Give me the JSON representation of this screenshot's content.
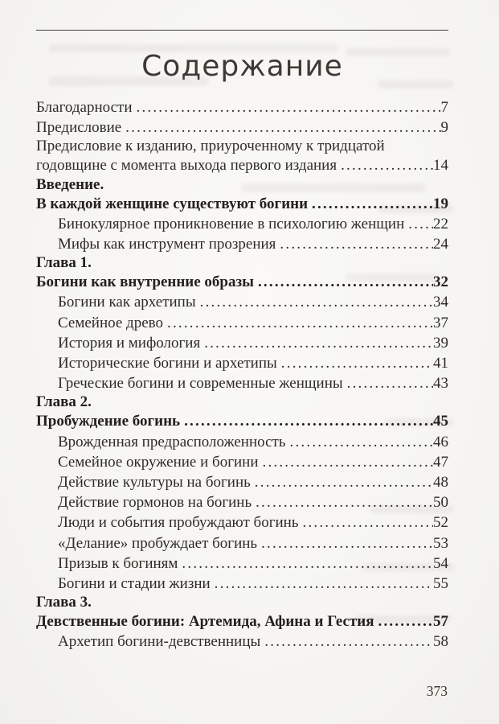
{
  "page": {
    "title": "Содержание",
    "folio": "373"
  },
  "colors": {
    "paper": "#f7f6f3",
    "ink": "#2e2b27",
    "ink_bold": "#23201d",
    "rule": "#45423e"
  },
  "toc": {
    "entries": [
      {
        "text": "Благодарности",
        "page": "7"
      },
      {
        "text": "Предисловие",
        "page": "9"
      },
      {
        "lines": [
          "Предисловие к изданию, приуроченному к тридцатой"
        ],
        "text": "годовщине с момента выхода первого издания",
        "page": "14"
      },
      {
        "lines": [
          "Введение."
        ],
        "text": "В каждой женщине существуют богини",
        "page": "19",
        "bold": true
      },
      {
        "text": "Бинокулярное проникновение в психологию женщин",
        "page": "22",
        "indent": true
      },
      {
        "text": "Мифы как инструмент прозрения",
        "page": "24",
        "indent": true
      },
      {
        "lines": [
          "Глава 1."
        ],
        "text": "Богини как внутренние образы",
        "page": "32",
        "bold": true
      },
      {
        "text": "Богини как архетипы",
        "page": "34",
        "indent": true
      },
      {
        "text": "Семейное древо",
        "page": "37",
        "indent": true
      },
      {
        "text": "История и мифология",
        "page": "39",
        "indent": true
      },
      {
        "text": "Исторические богини и архетипы",
        "page": "41",
        "indent": true
      },
      {
        "text": "Греческие богини и современные женщины",
        "page": "43",
        "indent": true
      },
      {
        "lines": [
          "Глава 2."
        ],
        "text": "Пробуждение богинь",
        "page": "45",
        "bold": true
      },
      {
        "text": "Врожденная предрасположенность",
        "page": "46",
        "indent": true
      },
      {
        "text": "Семейное окружение и богини",
        "page": "47",
        "indent": true
      },
      {
        "text": "Действие культуры на богинь",
        "page": "48",
        "indent": true
      },
      {
        "text": "Действие гормонов на богинь",
        "page": "50",
        "indent": true
      },
      {
        "text": "Люди и события пробуждают богинь",
        "page": "52",
        "indent": true
      },
      {
        "text": "«Делание» пробуждает богинь",
        "page": "53",
        "indent": true
      },
      {
        "text": "Призыв к богиням",
        "page": "54",
        "indent": true
      },
      {
        "text": "Богини и стадии жизни",
        "page": "55",
        "indent": true
      },
      {
        "lines": [
          "Глава 3."
        ],
        "text": "Девственные богини: Артемида, Афина и Гестия",
        "page": "57",
        "bold": true
      },
      {
        "text": "Архетип богини-девственницы",
        "page": "58",
        "indent": true
      }
    ]
  }
}
